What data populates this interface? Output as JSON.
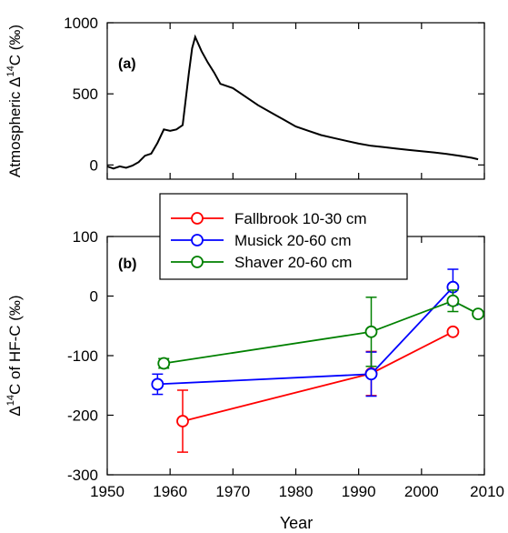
{
  "chart_data": [
    {
      "type": "line",
      "panel_label": "(a)",
      "ylabel_prefix": "Atmospheric ",
      "ylabel_delta": "Δ",
      "ylabel_sup": "14",
      "ylabel_suffix": "C (‰)",
      "xlim": [
        1950,
        2010
      ],
      "ylim": [
        -100,
        1000
      ],
      "yticks": [
        "0",
        "500",
        "1000"
      ],
      "series": [
        {
          "color": "#000000",
          "points": [
            [
              1950,
              -10
            ],
            [
              1951,
              -25
            ],
            [
              1952,
              -10
            ],
            [
              1953,
              -20
            ],
            [
              1954,
              -5
            ],
            [
              1955,
              20
            ],
            [
              1956,
              65
            ],
            [
              1957,
              80
            ],
            [
              1958,
              155
            ],
            [
              1959,
              250
            ],
            [
              1960,
              240
            ],
            [
              1961,
              250
            ],
            [
              1962,
              280
            ],
            [
              1963,
              650
            ],
            [
              1963.5,
              820
            ],
            [
              1964,
              900
            ],
            [
              1965,
              800
            ],
            [
              1966,
              720
            ],
            [
              1967,
              650
            ],
            [
              1968,
              570
            ],
            [
              1970,
              540
            ],
            [
              1972,
              480
            ],
            [
              1974,
              420
            ],
            [
              1976,
              370
            ],
            [
              1978,
              320
            ],
            [
              1980,
              270
            ],
            [
              1982,
              240
            ],
            [
              1984,
              210
            ],
            [
              1986,
              190
            ],
            [
              1988,
              170
            ],
            [
              1990,
              150
            ],
            [
              1992,
              135
            ],
            [
              1994,
              125
            ],
            [
              1996,
              115
            ],
            [
              1998,
              105
            ],
            [
              2000,
              97
            ],
            [
              2002,
              88
            ],
            [
              2004,
              78
            ],
            [
              2006,
              65
            ],
            [
              2008,
              50
            ],
            [
              2009,
              40
            ]
          ]
        }
      ]
    },
    {
      "type": "line",
      "panel_label": "(b)",
      "ylabel_prefix": "",
      "ylabel_delta": "Δ",
      "ylabel_sup": "14",
      "ylabel_suffix": "C of HF-C (‰)",
      "xlabel": "Year",
      "xlim": [
        1950,
        2010
      ],
      "ylim": [
        -300,
        100
      ],
      "xticks": [
        "1950",
        "1960",
        "1970",
        "1980",
        "1990",
        "2000",
        "2010"
      ],
      "yticks": [
        "-300",
        "-200",
        "-100",
        "0",
        "100"
      ],
      "legend_position": "top-center",
      "series": [
        {
          "name": "Fallbrook 10-30 cm",
          "color": "#ff0000",
          "points": [
            [
              1962,
              -210
            ],
            [
              1992,
              -130
            ],
            [
              2005,
              -60
            ]
          ],
          "errors": [
            52,
            37,
            0
          ]
        },
        {
          "name": "Musick 20-60 cm",
          "color": "#0000ff",
          "points": [
            [
              1958,
              -148
            ],
            [
              1992,
              -131
            ],
            [
              2005,
              15
            ]
          ],
          "errors": [
            17,
            37,
            30
          ]
        },
        {
          "name": "Shaver 20-60 cm",
          "color": "#008000",
          "points": [
            [
              1959,
              -113
            ],
            [
              1992,
              -60
            ],
            [
              2005,
              -8
            ],
            [
              2009,
              -30
            ]
          ],
          "errors": [
            8,
            58,
            18,
            0
          ]
        }
      ]
    }
  ]
}
